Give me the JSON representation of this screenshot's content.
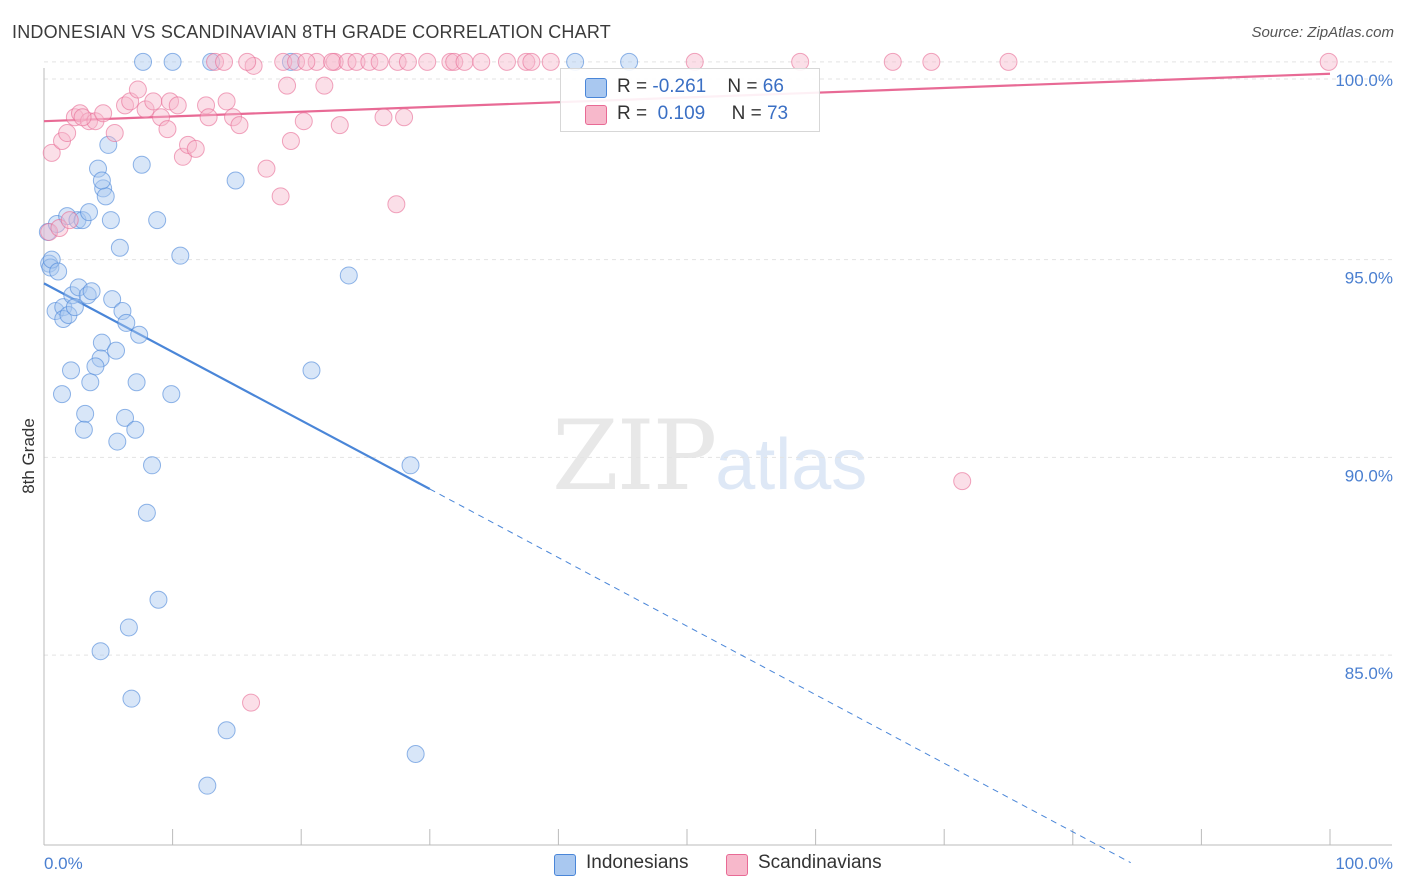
{
  "title": "INDONESIAN VS SCANDINAVIAN 8TH GRADE CORRELATION CHART",
  "source": "Source: ZipAtlas.com",
  "watermark": {
    "zip": "ZIP",
    "atlas": "atlas"
  },
  "legend_top": [
    {
      "label_r": "R = ",
      "r": "-0.261",
      "label_n": "N = ",
      "n": "66",
      "color": "#a9c8f0"
    },
    {
      "label_r": "R = ",
      "r": "0.109",
      "label_n": "N = ",
      "n": "73",
      "color": "#f7b8cb"
    }
  ],
  "legend_bottom": [
    {
      "label": "Indonesians",
      "color": "#a9c8f0"
    },
    {
      "label": "Scandinavians",
      "color": "#f7b8cb"
    }
  ],
  "chart_data": {
    "type": "scatter",
    "title": "INDONESIAN VS SCANDINAVIAN 8TH GRADE CORRELATION CHART",
    "xlabel": "",
    "ylabel": "8th Grade",
    "xlim": [
      0,
      100
    ],
    "ylim": [
      80.2,
      100.3
    ],
    "x_tick_labels": [
      "0.0%",
      "100.0%"
    ],
    "y_ticks": [
      85,
      90,
      95,
      100
    ],
    "y_tick_labels": [
      "85.0%",
      "90.0%",
      "95.0%",
      "100.0%"
    ],
    "grid": true,
    "series": [
      {
        "name": "Indonesians",
        "color": "#4a86d8",
        "fill": "#a9c8f0",
        "trend": {
          "x0": 0,
          "y0": 94.4,
          "x1": 30,
          "y1": 89.2,
          "dashed_to_x": 84.5
        },
        "points": [
          [
            0.3,
            95.7
          ],
          [
            0.4,
            94.9
          ],
          [
            0.5,
            94.8
          ],
          [
            0.6,
            95.0
          ],
          [
            1.1,
            94.7
          ],
          [
            0.9,
            93.7
          ],
          [
            1.5,
            93.8
          ],
          [
            1.5,
            93.5
          ],
          [
            1.9,
            93.6
          ],
          [
            2.2,
            94.1
          ],
          [
            2.7,
            94.3
          ],
          [
            3.4,
            94.1
          ],
          [
            3.7,
            94.2
          ],
          [
            2.4,
            93.8
          ],
          [
            1.0,
            95.9
          ],
          [
            1.8,
            96.1
          ],
          [
            2.6,
            96.0
          ],
          [
            3.0,
            96.0
          ],
          [
            3.5,
            96.2
          ],
          [
            4.6,
            96.8
          ],
          [
            4.8,
            96.6
          ],
          [
            5.2,
            96.0
          ],
          [
            5.0,
            97.9
          ],
          [
            4.2,
            97.3
          ],
          [
            4.5,
            97.0
          ],
          [
            5.9,
            95.3
          ],
          [
            7.6,
            97.4
          ],
          [
            8.8,
            96.0
          ],
          [
            10.6,
            95.1
          ],
          [
            14.9,
            97.0
          ],
          [
            5.3,
            94.0
          ],
          [
            6.1,
            93.7
          ],
          [
            6.4,
            93.4
          ],
          [
            7.4,
            93.1
          ],
          [
            4.5,
            92.9
          ],
          [
            4.4,
            92.5
          ],
          [
            5.6,
            92.7
          ],
          [
            4.0,
            92.3
          ],
          [
            2.1,
            92.2
          ],
          [
            3.6,
            91.9
          ],
          [
            7.2,
            91.9
          ],
          [
            1.4,
            91.6
          ],
          [
            9.9,
            91.6
          ],
          [
            3.2,
            91.1
          ],
          [
            6.3,
            91.0
          ],
          [
            3.1,
            90.7
          ],
          [
            7.1,
            90.7
          ],
          [
            5.7,
            90.4
          ],
          [
            8.4,
            89.8
          ],
          [
            20.8,
            92.2
          ],
          [
            28.5,
            89.8
          ],
          [
            23.7,
            94.6
          ],
          [
            8.0,
            88.6
          ],
          [
            8.9,
            86.4
          ],
          [
            6.6,
            85.7
          ],
          [
            4.4,
            85.1
          ],
          [
            6.8,
            83.9
          ],
          [
            14.2,
            83.1
          ],
          [
            12.7,
            81.7
          ],
          [
            28.9,
            82.5
          ],
          [
            7.7,
            100.0
          ],
          [
            10.0,
            100.0
          ],
          [
            13.0,
            100.0
          ],
          [
            19.2,
            100.0
          ],
          [
            41.3,
            100.0
          ],
          [
            45.5,
            100.0
          ]
        ]
      },
      {
        "name": "Scandinavians",
        "color": "#e86a95",
        "fill": "#f7b8cb",
        "trend": {
          "x0": 0,
          "y0": 98.5,
          "x1": 100,
          "y1": 99.7
        },
        "points": [
          [
            0.6,
            97.7
          ],
          [
            1.4,
            98.0
          ],
          [
            1.8,
            98.2
          ],
          [
            2.4,
            98.6
          ],
          [
            2.8,
            98.7
          ],
          [
            3.5,
            98.5
          ],
          [
            4.0,
            98.5
          ],
          [
            4.6,
            98.7
          ],
          [
            5.5,
            98.2
          ],
          [
            6.3,
            98.9
          ],
          [
            6.7,
            99.0
          ],
          [
            7.3,
            99.3
          ],
          [
            7.9,
            98.8
          ],
          [
            8.5,
            99.0
          ],
          [
            9.1,
            98.6
          ],
          [
            9.6,
            98.3
          ],
          [
            9.8,
            99.0
          ],
          [
            10.4,
            98.9
          ],
          [
            10.8,
            97.6
          ],
          [
            11.2,
            97.9
          ],
          [
            11.8,
            97.8
          ],
          [
            12.6,
            98.9
          ],
          [
            12.8,
            98.6
          ],
          [
            14.2,
            99.0
          ],
          [
            14.7,
            98.6
          ],
          [
            15.2,
            98.4
          ],
          [
            16.3,
            99.9
          ],
          [
            17.3,
            97.3
          ],
          [
            18.4,
            96.6
          ],
          [
            18.9,
            99.4
          ],
          [
            19.2,
            98.0
          ],
          [
            20.2,
            98.5
          ],
          [
            21.2,
            100.0
          ],
          [
            21.8,
            99.4
          ],
          [
            22.6,
            100.0
          ],
          [
            23.0,
            98.4
          ],
          [
            26.4,
            98.6
          ],
          [
            27.4,
            96.4
          ],
          [
            28.0,
            98.6
          ],
          [
            13.3,
            100.0
          ],
          [
            14.0,
            100.0
          ],
          [
            15.8,
            100.0
          ],
          [
            18.6,
            100.0
          ],
          [
            19.6,
            100.0
          ],
          [
            20.4,
            100.0
          ],
          [
            22.4,
            100.0
          ],
          [
            23.6,
            100.0
          ],
          [
            24.3,
            100.0
          ],
          [
            25.3,
            100.0
          ],
          [
            26.1,
            100.0
          ],
          [
            27.5,
            100.0
          ],
          [
            28.3,
            100.0
          ],
          [
            29.8,
            100.0
          ],
          [
            31.6,
            100.0
          ],
          [
            31.9,
            100.0
          ],
          [
            32.7,
            100.0
          ],
          [
            34.0,
            100.0
          ],
          [
            36.0,
            100.0
          ],
          [
            37.5,
            100.0
          ],
          [
            37.9,
            100.0
          ],
          [
            39.4,
            100.0
          ],
          [
            50.6,
            100.0
          ],
          [
            58.8,
            100.0
          ],
          [
            66.0,
            100.0
          ],
          [
            69.0,
            100.0
          ],
          [
            75.0,
            100.0
          ],
          [
            99.9,
            100.0
          ],
          [
            71.4,
            89.4
          ],
          [
            16.1,
            83.8
          ],
          [
            0.4,
            95.7
          ],
          [
            1.2,
            95.8
          ],
          [
            2.0,
            96.0
          ],
          [
            3.0,
            98.6
          ]
        ]
      }
    ]
  }
}
